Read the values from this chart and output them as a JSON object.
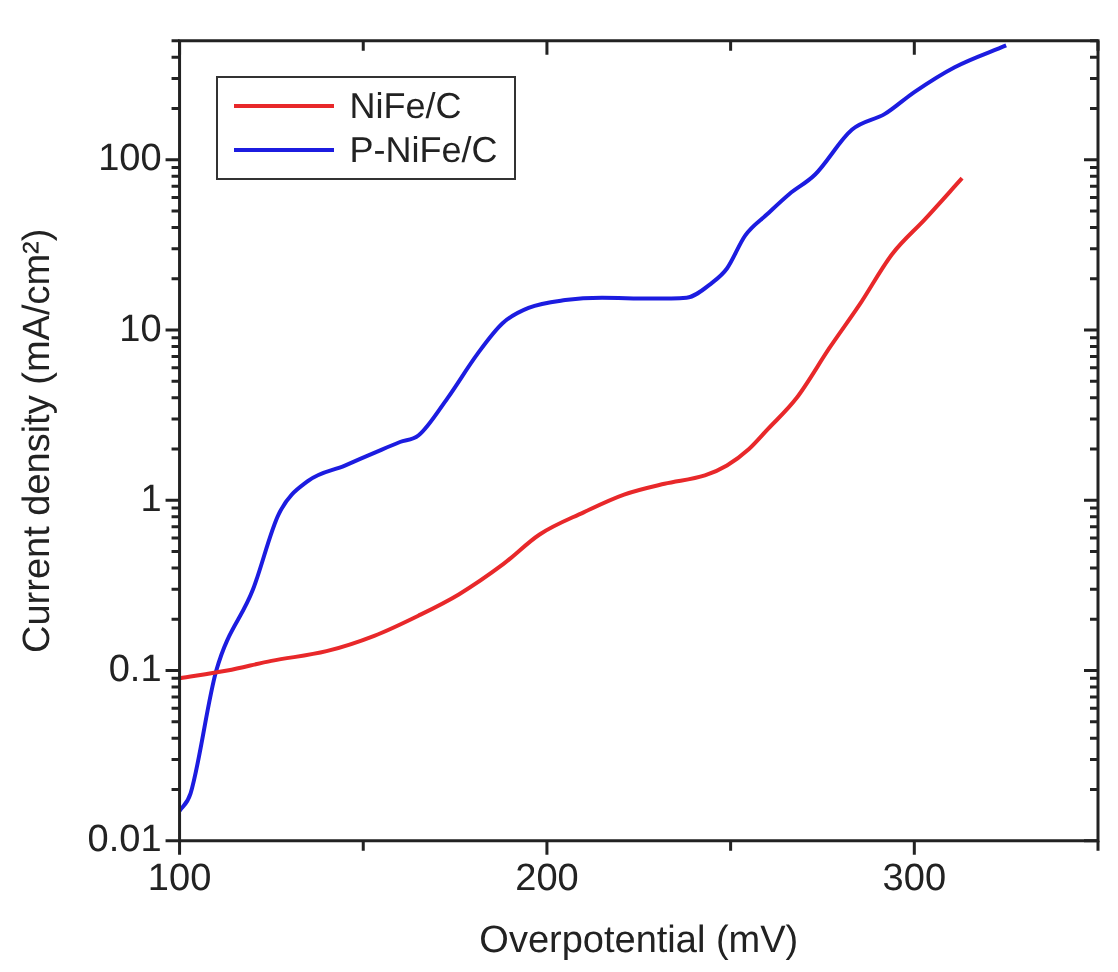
{
  "chart_data": {
    "type": "line",
    "xlabel": "Overpotential (mV)",
    "ylabel": "Current density (mA/cm²)",
    "log": "y",
    "legend": "top left",
    "grid": false,
    "marker": "none",
    "line_style": "solid",
    "xlim": [
      100,
      350
    ],
    "xticks": [
      100,
      {
        "value": 150,
        "label": null
      },
      200,
      {
        "value": 250,
        "label": null
      },
      300,
      {
        "value": 350,
        "label": null
      }
    ],
    "ylim": [
      0.01,
      500
    ],
    "yticks": [
      {
        "value": 0.01,
        "label": "0.01"
      },
      {
        "value": 0.02,
        "label": null
      },
      {
        "value": 0.03,
        "label": null
      },
      {
        "value": 0.04,
        "label": null
      },
      {
        "value": 0.05,
        "label": null
      },
      {
        "value": 0.06,
        "label": null
      },
      {
        "value": 0.07,
        "label": null
      },
      {
        "value": 0.08,
        "label": null
      },
      {
        "value": 0.09,
        "label": null
      },
      {
        "value": 0.1,
        "label": "0.1"
      },
      {
        "value": 0.2,
        "label": null
      },
      {
        "value": 0.3,
        "label": null
      },
      {
        "value": 0.4,
        "label": null
      },
      {
        "value": 0.5,
        "label": null
      },
      {
        "value": 0.6,
        "label": null
      },
      {
        "value": 0.7,
        "label": null
      },
      {
        "value": 0.8,
        "label": null
      },
      {
        "value": 0.9,
        "label": null
      },
      1,
      {
        "value": 2,
        "label": null
      },
      {
        "value": 3,
        "label": null
      },
      {
        "value": 4,
        "label": null
      },
      {
        "value": 5,
        "label": null
      },
      {
        "value": 6,
        "label": null
      },
      {
        "value": 7,
        "label": null
      },
      {
        "value": 8,
        "label": null
      },
      {
        "value": 9,
        "label": null
      },
      10,
      {
        "value": 20,
        "label": null
      },
      {
        "value": 30,
        "label": null
      },
      {
        "value": 40,
        "label": null
      },
      {
        "value": 50,
        "label": null
      },
      {
        "value": 60,
        "label": null
      },
      {
        "value": 70,
        "label": null
      },
      {
        "value": 80,
        "label": null
      },
      {
        "value": 90,
        "label": null
      },
      100,
      {
        "value": 200,
        "label": null
      },
      {
        "value": 300,
        "label": null
      },
      {
        "value": 400,
        "label": null
      },
      {
        "value": 500,
        "label": null
      }
    ],
    "series": [
      {
        "name": "NiFe/C",
        "color": "#e8282a",
        "x": [
          100,
          113,
          125,
          140,
          153,
          165,
          176,
          188,
          198,
          210,
          221,
          232,
          243,
          249,
          255,
          260,
          268,
          277,
          285,
          294,
          303,
          313
        ],
        "values": [
          0.09,
          0.1,
          0.114,
          0.13,
          0.16,
          0.21,
          0.28,
          0.42,
          0.63,
          0.85,
          1.08,
          1.25,
          1.4,
          1.6,
          2,
          2.6,
          4,
          7.9,
          14,
          28,
          45,
          78
        ]
      },
      {
        "name": "P-NiFe/C",
        "color": "#1c1ce0",
        "x": [
          100,
          103,
          110,
          120,
          127,
          135,
          145,
          153,
          160,
          165,
          173,
          181,
          188,
          195,
          205,
          215,
          228,
          238,
          245,
          249,
          254,
          260,
          266,
          273,
          283,
          292,
          300,
          311,
          325
        ],
        "values": [
          0.015,
          0.019,
          0.1,
          0.3,
          0.83,
          1.3,
          1.6,
          1.9,
          2.2,
          2.4,
          4,
          7.2,
          11,
          13.5,
          15,
          15.5,
          15.3,
          15.5,
          19,
          23,
          36,
          48,
          63,
          82,
          150,
          186,
          250,
          350,
          470
        ]
      }
    ]
  }
}
